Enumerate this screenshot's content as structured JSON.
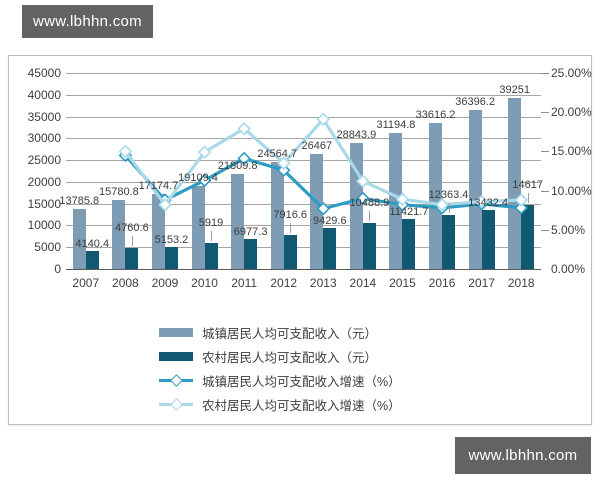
{
  "watermark": {
    "text": "www.lbhhn.com",
    "bg": "#636363",
    "fg": "#ffffff"
  },
  "chart_data": {
    "type": "bar",
    "subtype": "combo-bar-line",
    "title": "",
    "categories": [
      "2007",
      "2008",
      "2009",
      "2010",
      "2011",
      "2012",
      "2013",
      "2014",
      "2015",
      "2016",
      "2017",
      "2018"
    ],
    "series": [
      {
        "name": "城镇居民人均可支配收入（元）",
        "type": "bar",
        "axis": "left",
        "color": "#7e9db4",
        "values": [
          13785.8,
          15780.8,
          17174.7,
          19109.4,
          21809.8,
          24564.7,
          26467,
          28843.9,
          31194.8,
          33616.2,
          36396.2,
          39251
        ],
        "labels": [
          "13785.8",
          "15780.8",
          "17174.7",
          "19109.4",
          "21809.8",
          "24564.7",
          "26467",
          "28843.9",
          "31194.8",
          "33616.2",
          "36396.2",
          "39251"
        ]
      },
      {
        "name": "农村居民人均可支配收入（元）",
        "type": "bar",
        "axis": "left",
        "color": "#115872",
        "values": [
          4140.4,
          4760.6,
          5153.2,
          5919,
          6977.3,
          7916.6,
          9429.6,
          10488.9,
          11421.7,
          12363.4,
          13432.4,
          14617
        ],
        "labels": [
          "4140.4",
          "4760.6",
          "5153.2",
          "5919",
          "6977.3",
          "7916.6",
          "9429.6",
          "10488.9",
          "11421.7",
          "12363.4",
          "13432.4",
          "14617"
        ],
        "label_raised": [
          false,
          true,
          false,
          true,
          false,
          true,
          false,
          true,
          false,
          true,
          false,
          true
        ]
      },
      {
        "name": "城镇居民人均可支配收入增速（%）",
        "type": "line",
        "axis": "right",
        "color": "#2d9cc2",
        "marker": "diamond",
        "values": [
          null,
          14.5,
          8.8,
          11.3,
          14.1,
          12.6,
          7.7,
          9.0,
          8.2,
          7.8,
          8.3,
          7.8
        ]
      },
      {
        "name": "农村居民人均可支配收入增速（%）",
        "type": "line",
        "axis": "right",
        "color": "#a9d8e9",
        "marker": "diamond",
        "values": [
          null,
          15.0,
          8.2,
          14.9,
          17.9,
          13.5,
          19.1,
          11.2,
          8.9,
          8.2,
          8.6,
          8.8
        ]
      }
    ],
    "left_axis": {
      "min": 0,
      "max": 45000,
      "step": 5000,
      "ticks": [
        "0",
        "5000",
        "10000",
        "15000",
        "20000",
        "25000",
        "30000",
        "35000",
        "40000",
        "45000"
      ]
    },
    "right_axis": {
      "min": 0,
      "max": 25,
      "step": 5,
      "ticks": [
        "0.00%",
        "5.00%",
        "10.00%",
        "15.00%",
        "20.00%",
        "25.00%"
      ]
    },
    "grid": true,
    "legend_position": "bottom"
  }
}
